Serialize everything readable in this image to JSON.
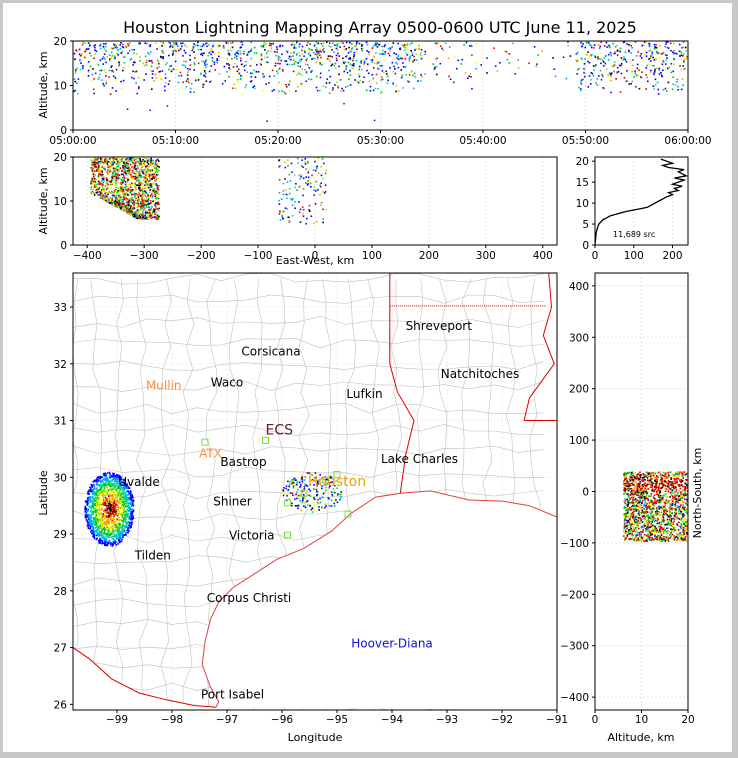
{
  "chart_data": [
    {
      "type": "scatter",
      "panel": "altitude-vs-time",
      "title": "Houston Lightning Mapping Array 0500-0600 UTC June 11, 2025",
      "ylabel": "Altitude, km",
      "ylim": [
        0,
        20
      ],
      "yticks": [
        "0",
        "10",
        "20"
      ],
      "xticks": [
        "05:00:00",
        "05:10:00",
        "05:20:00",
        "05:30:00",
        "05:40:00",
        "05:50:00",
        "06:00:00"
      ],
      "xlim_minutes": [
        0,
        60
      ],
      "density_bands": [
        {
          "t0": 0,
          "t1": 34,
          "alt0": 8,
          "alt1": 20,
          "density": 0.55
        },
        {
          "t0": 34,
          "t1": 42,
          "alt0": 9,
          "alt1": 20,
          "density": 0.12
        },
        {
          "t0": 42,
          "t1": 49,
          "alt0": 10,
          "alt1": 20,
          "density": 0.06
        },
        {
          "t0": 49,
          "t1": 60,
          "alt0": 8,
          "alt1": 20,
          "density": 0.55
        }
      ]
    },
    {
      "type": "scatter",
      "panel": "altitude-vs-east-west",
      "xlabel": "East-West, km",
      "ylabel": "Altitude, km",
      "xlim": [
        -425,
        425
      ],
      "ylim": [
        0,
        20
      ],
      "xticks": [
        "−400",
        "−300",
        "−200",
        "−100",
        "0",
        "100",
        "200",
        "300",
        "400"
      ],
      "yticks": [
        "0",
        "10",
        "20"
      ],
      "clusters": [
        {
          "x0": -395,
          "x1": -275,
          "alt0": 6,
          "alt1": 20,
          "intensity": "high"
        },
        {
          "x0": -65,
          "x1": 20,
          "alt0": 5,
          "alt1": 20,
          "intensity": "sparse"
        }
      ]
    },
    {
      "type": "line",
      "panel": "source-count-vs-altitude",
      "xlim": [
        0,
        240
      ],
      "ylim": [
        0,
        21
      ],
      "xticks": [
        "0",
        "100",
        "200"
      ],
      "yticks": [
        "0",
        "5",
        "10",
        "15",
        "20"
      ],
      "annotation": "11,689 src",
      "profile": [
        [
          0,
          0.2
        ],
        [
          1,
          1
        ],
        [
          2,
          2
        ],
        [
          3,
          3
        ],
        [
          6,
          4
        ],
        [
          10,
          5
        ],
        [
          20,
          6
        ],
        [
          40,
          7
        ],
        [
          80,
          8
        ],
        [
          120,
          8.7
        ],
        [
          135,
          9
        ],
        [
          145,
          9.5
        ],
        [
          155,
          10
        ],
        [
          165,
          10.5
        ],
        [
          175,
          11
        ],
        [
          185,
          11.5
        ],
        [
          200,
          12
        ],
        [
          190,
          12.5
        ],
        [
          215,
          13
        ],
        [
          205,
          13.5
        ],
        [
          225,
          14
        ],
        [
          200,
          14.5
        ],
        [
          215,
          15
        ],
        [
          230,
          15.5
        ],
        [
          205,
          16
        ],
        [
          235,
          16.5
        ],
        [
          225,
          17
        ],
        [
          215,
          17.5
        ],
        [
          230,
          18
        ],
        [
          190,
          18.5
        ],
        [
          175,
          19
        ],
        [
          200,
          19.5
        ],
        [
          185,
          20
        ],
        [
          170,
          20.5
        ]
      ]
    },
    {
      "type": "map",
      "panel": "plan-view",
      "xlabel": "Longitude",
      "ylabel": "Latitude",
      "xlim": [
        -99.8,
        -91
      ],
      "ylim": [
        25.9,
        33.6
      ],
      "xticks": [
        "−99",
        "−98",
        "−97",
        "−96",
        "−95",
        "−94",
        "−93",
        "−92",
        "−91"
      ],
      "yticks": [
        "26",
        "27",
        "28",
        "29",
        "30",
        "31",
        "32",
        "33"
      ],
      "cities": [
        {
          "name": "Shreveport",
          "lon": -93.15,
          "lat": 32.6,
          "color": "#000000"
        },
        {
          "name": "Corsicana",
          "lon": -96.2,
          "lat": 32.15,
          "color": "#000000"
        },
        {
          "name": "Natchitoches",
          "lon": -92.4,
          "lat": 31.75,
          "color": "#000000"
        },
        {
          "name": "Mullin",
          "lon": -98.15,
          "lat": 31.55,
          "color": "#ff8c3a"
        },
        {
          "name": "Waco",
          "lon": -97.0,
          "lat": 31.6,
          "color": "#000000"
        },
        {
          "name": "Lufkin",
          "lon": -94.5,
          "lat": 31.4,
          "color": "#000000"
        },
        {
          "name": "ECS",
          "lon": -96.05,
          "lat": 30.75,
          "color": "#5a1e1e"
        },
        {
          "name": "ATX",
          "lon": -97.3,
          "lat": 30.35,
          "color": "#ff8c3a"
        },
        {
          "name": "Lake Charles",
          "lon": -93.5,
          "lat": 30.25,
          "color": "#000000"
        },
        {
          "name": "Bastrop",
          "lon": -96.7,
          "lat": 30.2,
          "color": "#000000"
        },
        {
          "name": "Houston",
          "lon": -95.0,
          "lat": 29.85,
          "color": "#f0a000"
        },
        {
          "name": "Uvalde",
          "lon": -98.6,
          "lat": 29.85,
          "color": "#000000"
        },
        {
          "name": "Shiner",
          "lon": -96.9,
          "lat": 29.5,
          "color": "#000000"
        },
        {
          "name": "Victoria",
          "lon": -96.55,
          "lat": 28.9,
          "color": "#000000"
        },
        {
          "name": "Tilden",
          "lon": -98.35,
          "lat": 28.55,
          "color": "#000000"
        },
        {
          "name": "Corpus Christi",
          "lon": -96.6,
          "lat": 27.8,
          "color": "#000000"
        },
        {
          "name": "Hoover-Diana",
          "lon": -94.0,
          "lat": 27.0,
          "color": "#1010e0"
        },
        {
          "name": "Port Isabel",
          "lon": -96.9,
          "lat": 26.1,
          "color": "#000000"
        }
      ],
      "stations": [
        {
          "lon": -97.4,
          "lat": 30.62
        },
        {
          "lon": -96.3,
          "lat": 30.65
        },
        {
          "lon": -95.9,
          "lat": 28.98
        },
        {
          "lon": -95.9,
          "lat": 29.55
        },
        {
          "lon": -95.6,
          "lat": 29.72
        },
        {
          "lon": -95.2,
          "lat": 29.95
        },
        {
          "lon": -95.0,
          "lat": 30.05
        },
        {
          "lon": -94.8,
          "lat": 29.35
        }
      ],
      "storms": [
        {
          "lon0": -99.6,
          "lon1": -98.7,
          "lat0": 28.8,
          "lat1": 30.1,
          "intensity": "high"
        },
        {
          "lon0": -96.0,
          "lon1": -94.9,
          "lat0": 29.4,
          "lat1": 30.1,
          "intensity": "sparse"
        }
      ]
    },
    {
      "type": "scatter",
      "panel": "north-south-vs-altitude",
      "xlabel": "Altitude, km",
      "ylabel": "North-South, km",
      "xlim": [
        0,
        20
      ],
      "ylim": [
        -425,
        425
      ],
      "xticks": [
        "0",
        "10",
        "20"
      ],
      "yticks": [
        "−400",
        "−300",
        "−200",
        "−100",
        "0",
        "100",
        "200",
        "300",
        "400"
      ],
      "cluster": {
        "alt0": 6,
        "alt1": 20,
        "ns0": -95,
        "ns1": 40,
        "intensity": "high"
      }
    }
  ],
  "colors": {
    "scale": [
      "#0000ff",
      "#00a0ff",
      "#00d8a0",
      "#00c000",
      "#a0e000",
      "#ffff00",
      "#ffa000",
      "#ff0000",
      "#b00000",
      "#000000"
    ],
    "county_lines": "#c0c0c0",
    "state_lines": "#e00000",
    "coast": "#e04040",
    "stations": "#7be03c"
  }
}
